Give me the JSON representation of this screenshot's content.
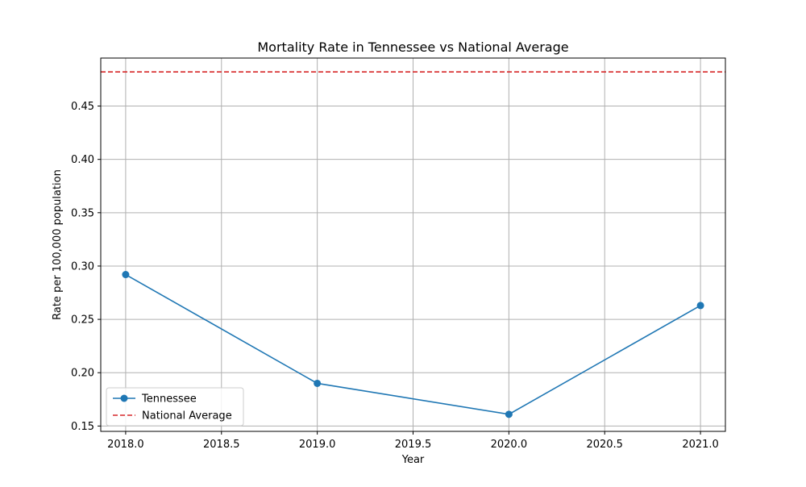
{
  "chart_data": {
    "type": "line",
    "title": "Mortality Rate in Tennessee vs National Average",
    "xlabel": "Year",
    "ylabel": "Rate per 100,000 population",
    "xlim": [
      2017.87,
      2021.13
    ],
    "ylim": [
      0.145,
      0.495
    ],
    "x_ticks": [
      2018.0,
      2018.5,
      2019.0,
      2019.5,
      2020.0,
      2020.5,
      2021.0
    ],
    "x_tick_labels": [
      "2018.0",
      "2018.5",
      "2019.0",
      "2019.5",
      "2020.0",
      "2020.5",
      "2021.0"
    ],
    "y_ticks": [
      0.15,
      0.2,
      0.25,
      0.3,
      0.35,
      0.4,
      0.45
    ],
    "y_tick_labels": [
      "0.15",
      "0.20",
      "0.25",
      "0.30",
      "0.35",
      "0.40",
      "0.45"
    ],
    "grid": true,
    "legend_position": "lower-left",
    "series": [
      {
        "name": "Tennessee",
        "kind": "line-markers",
        "color": "#1f77b4",
        "x": [
          2018,
          2019,
          2020,
          2021
        ],
        "y": [
          0.292,
          0.19,
          0.161,
          0.263
        ]
      },
      {
        "name": "National Average",
        "kind": "hline-dashed",
        "color": "#d62728",
        "y": 0.482
      }
    ]
  }
}
